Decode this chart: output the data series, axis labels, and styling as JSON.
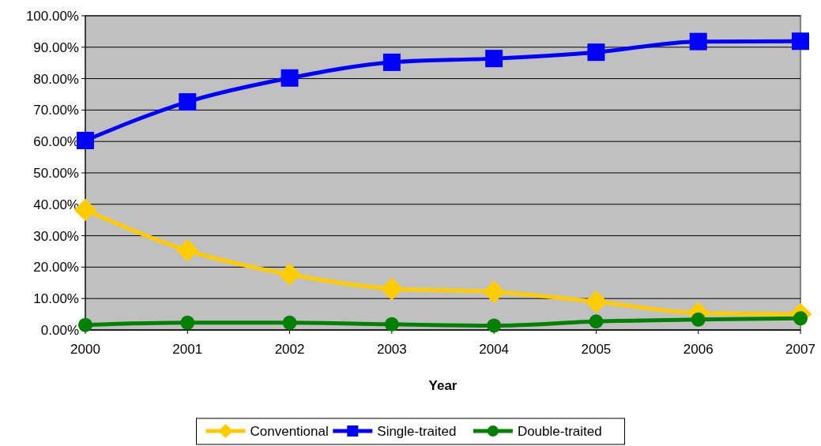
{
  "chart_data": {
    "type": "line",
    "xlabel": "Year",
    "x": [
      2000,
      2001,
      2002,
      2003,
      2004,
      2005,
      2006,
      2007
    ],
    "xlim": [
      2000,
      2007
    ],
    "xticks": [
      2000,
      2001,
      2002,
      2003,
      2004,
      2005,
      2006,
      2007
    ],
    "ylim": [
      0,
      100
    ],
    "yticks": [
      {
        "value": 0,
        "label": "0.00%"
      },
      {
        "value": 10,
        "label": "10.00%"
      },
      {
        "value": 20,
        "label": "20.00%"
      },
      {
        "value": 30,
        "label": "30.00%"
      },
      {
        "value": 40,
        "label": "40.00%"
      },
      {
        "value": 50,
        "label": "50.00%"
      },
      {
        "value": 60,
        "label": "60.00%"
      },
      {
        "value": 70,
        "label": "70.00%"
      },
      {
        "value": 80,
        "label": "80.00%"
      },
      {
        "value": 90,
        "label": "90.00%"
      },
      {
        "value": 100,
        "label": "100.00%"
      }
    ],
    "grid": "y",
    "legend": "bottom",
    "line_style": "solid",
    "series": [
      {
        "name": "Conventional",
        "color": "#ffcc00",
        "marker": "diamond",
        "values": [
          38.2,
          25.3,
          17.7,
          13.1,
          12.1,
          9.0,
          5.4,
          5.0
        ]
      },
      {
        "name": "Single-traited",
        "color": "#0000ff",
        "marker": "square",
        "values": [
          60.3,
          72.6,
          80.2,
          85.2,
          86.4,
          88.4,
          91.8,
          91.9
        ]
      },
      {
        "name": "Double-traited",
        "color": "#008000",
        "marker": "circle",
        "values": [
          1.6,
          2.3,
          2.3,
          1.8,
          1.4,
          2.7,
          3.3,
          3.7
        ]
      }
    ]
  }
}
